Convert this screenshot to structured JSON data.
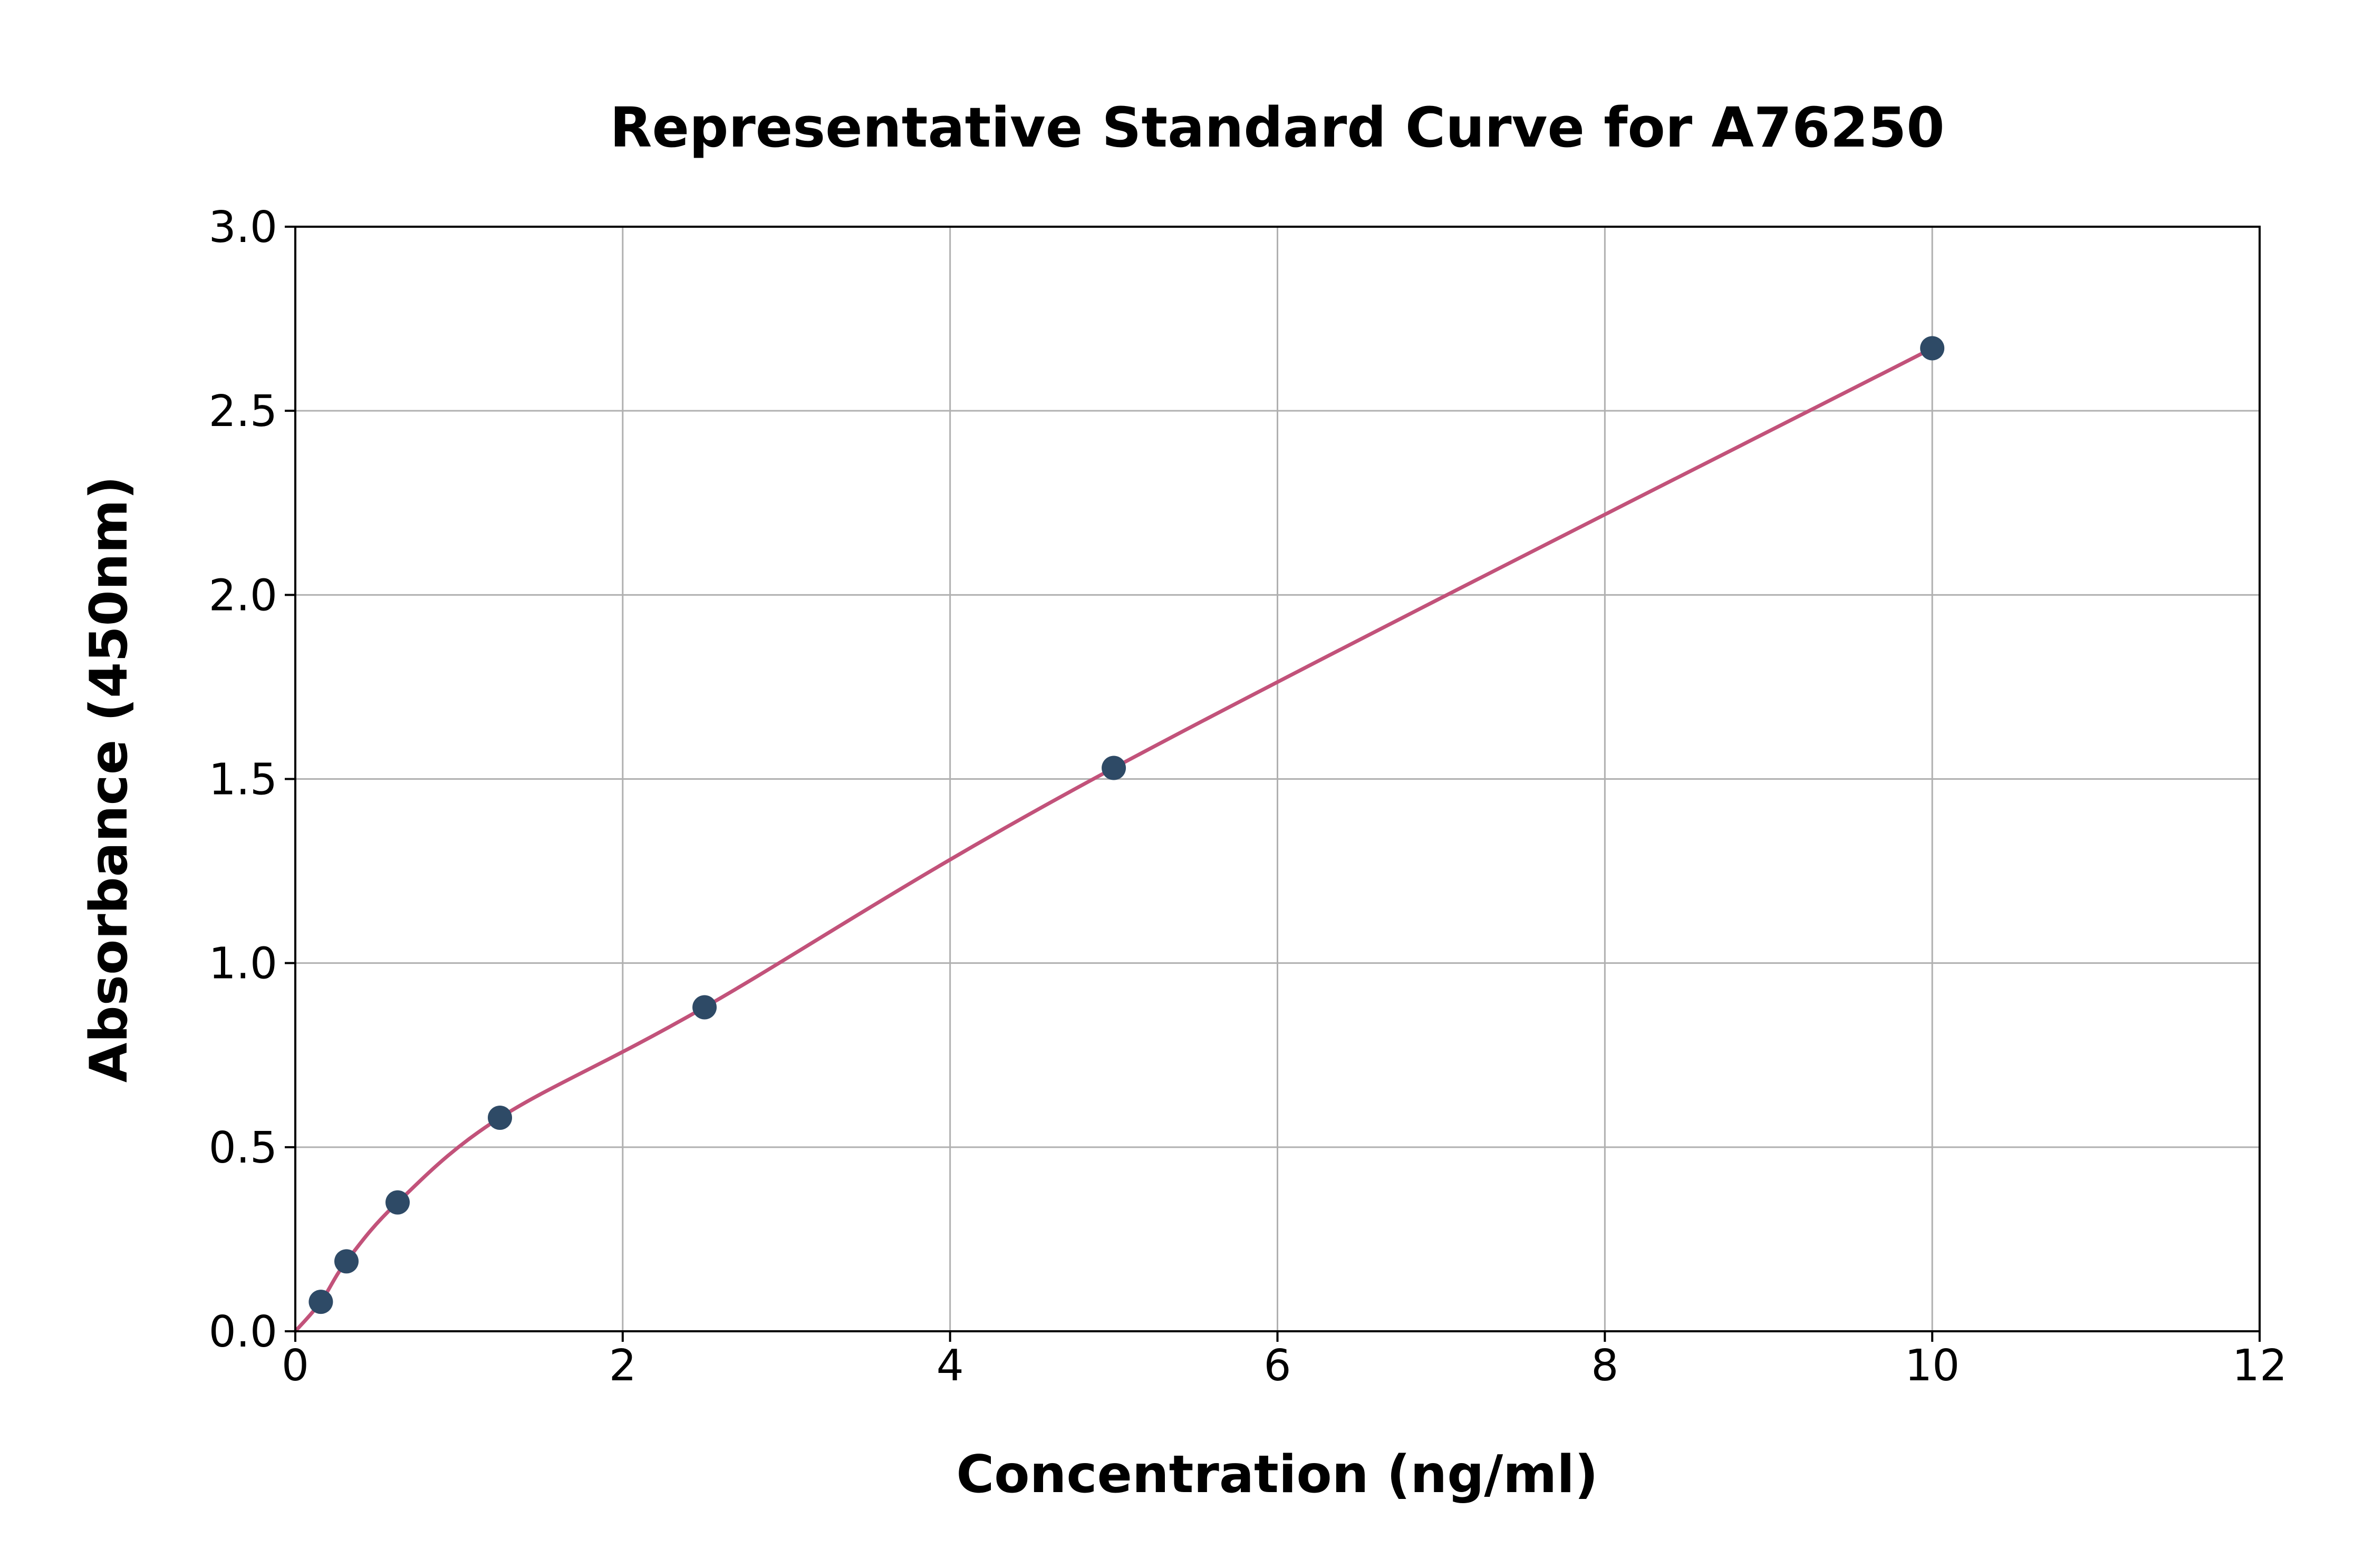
{
  "chart_data": {
    "type": "scatter",
    "title": "Representative Standard Curve for A76250",
    "xlabel": "Concentration (ng/ml)",
    "ylabel": "Absorbance (450nm)",
    "xlim": [
      0,
      12
    ],
    "ylim": [
      0,
      3.0
    ],
    "x_ticks": [
      0,
      2,
      4,
      6,
      8,
      10,
      12
    ],
    "x_tick_labels": [
      "0",
      "2",
      "4",
      "6",
      "8",
      "10",
      "12"
    ],
    "y_ticks": [
      0.0,
      0.5,
      1.0,
      1.5,
      2.0,
      2.5,
      3.0
    ],
    "y_tick_labels": [
      "0.0",
      "0.5",
      "1.0",
      "1.5",
      "2.0",
      "2.5",
      "3.0"
    ],
    "grid": true,
    "legend": "none",
    "curve_start": {
      "x": 0,
      "y": 0
    },
    "points": [
      {
        "x": 0.156,
        "y": 0.08
      },
      {
        "x": 0.3125,
        "y": 0.19
      },
      {
        "x": 0.625,
        "y": 0.35
      },
      {
        "x": 1.25,
        "y": 0.58
      },
      {
        "x": 2.5,
        "y": 0.88
      },
      {
        "x": 5,
        "y": 1.53
      },
      {
        "x": 10,
        "y": 2.67
      }
    ],
    "colors": {
      "curve": "#c2527a",
      "points": "#2e4a66",
      "grid": "#b0b0b0",
      "axis": "#000000",
      "background": "#ffffff"
    }
  }
}
